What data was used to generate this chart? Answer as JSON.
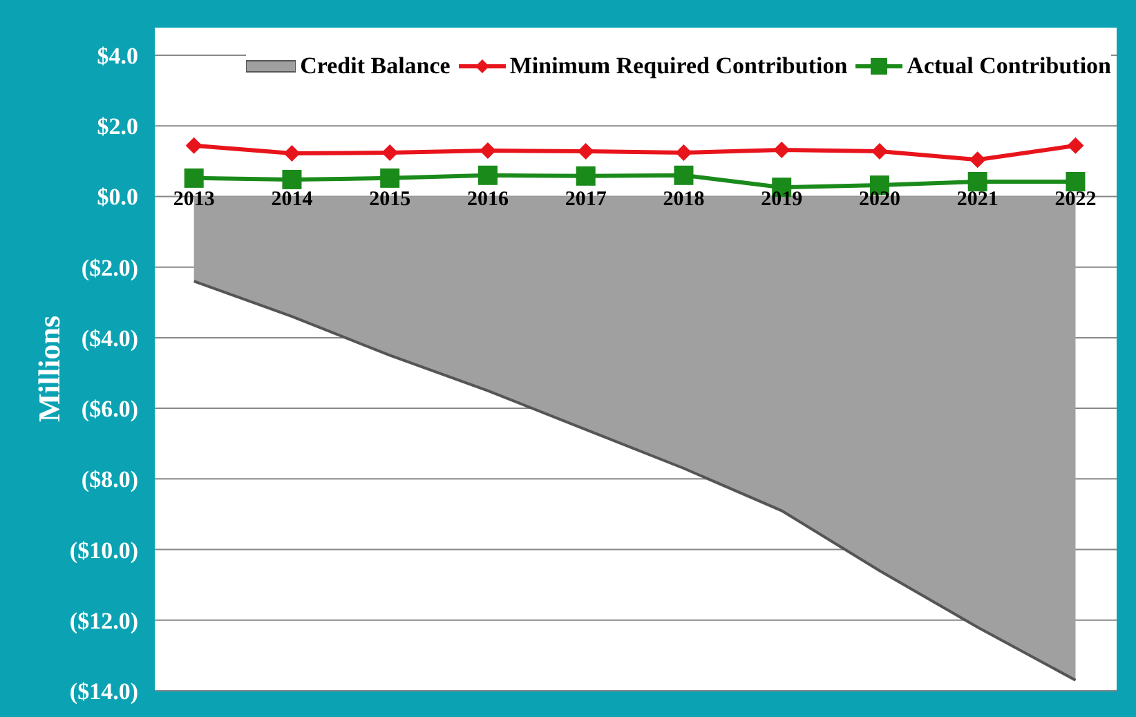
{
  "chart_data": {
    "type": "area",
    "ylabel": "Millions",
    "categories": [
      "2013",
      "2014",
      "2015",
      "2016",
      "2017",
      "2018",
      "2019",
      "2020",
      "2021",
      "2022"
    ],
    "series": [
      {
        "name": "Credit Balance",
        "type": "area",
        "color": "#a0a0a0",
        "values": [
          -2.4,
          -3.4,
          -4.5,
          -5.5,
          -6.6,
          -7.7,
          -8.9,
          -10.6,
          -12.2,
          -13.7
        ]
      },
      {
        "name": "Minimum Required Contribution",
        "type": "line",
        "color": "#e8141c",
        "marker": "diamond",
        "values": [
          1.44,
          1.22,
          1.24,
          1.3,
          1.28,
          1.24,
          1.32,
          1.28,
          1.04,
          1.44
        ]
      },
      {
        "name": "Actual Contribution",
        "type": "line",
        "color": "#1a8a1a",
        "marker": "square",
        "values": [
          0.52,
          0.48,
          0.52,
          0.6,
          0.58,
          0.6,
          0.26,
          0.32,
          0.42,
          0.42
        ]
      }
    ],
    "ylim": [
      -14,
      4
    ],
    "yticks": [
      {
        "value": 4,
        "label": "$4.0"
      },
      {
        "value": 2,
        "label": "$2.0"
      },
      {
        "value": 0,
        "label": "$0.0"
      },
      {
        "value": -2,
        "label": "($2.0)"
      },
      {
        "value": -4,
        "label": "($4.0)"
      },
      {
        "value": -6,
        "label": "($6.0)"
      },
      {
        "value": -8,
        "label": "($8.0)"
      },
      {
        "value": -10,
        "label": "($10.0)"
      },
      {
        "value": -12,
        "label": "($12.0)"
      },
      {
        "value": -14,
        "label": "($14.0)"
      }
    ],
    "grid": "y",
    "legend": "top"
  }
}
